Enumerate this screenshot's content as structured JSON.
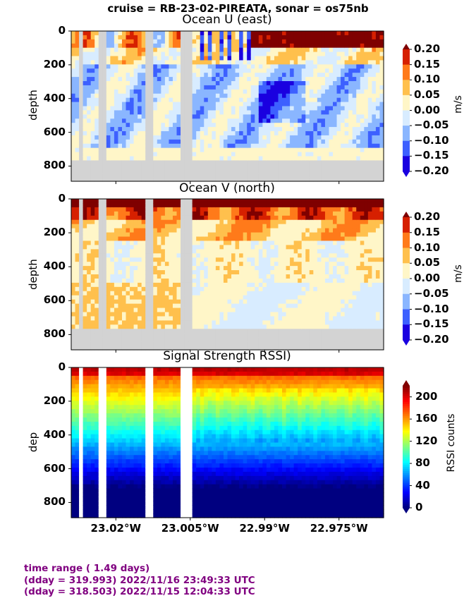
{
  "suptitle": "cruise = RB-23-02-PIREATA,  sonar = os75nb",
  "panels": [
    {
      "title": "Ocean U (east)",
      "ylabel": "depth"
    },
    {
      "title": "Ocean V (north)",
      "ylabel": "depth"
    },
    {
      "title": "Signal Strength RSSI)",
      "ylabel": "dep"
    }
  ],
  "colorbars": [
    {
      "label": "m/s",
      "ticks": [
        "0.20",
        "0.15",
        "0.10",
        "0.05",
        "0.00",
        "−0.05",
        "−0.10",
        "−0.15",
        "−0.20"
      ]
    },
    {
      "label": "m/s",
      "ticks": [
        "0.20",
        "0.15",
        "0.10",
        "0.05",
        "0.00",
        "−0.05",
        "−0.10",
        "−0.15",
        "−0.20"
      ]
    },
    {
      "label": "RSSI counts",
      "ticks": [
        "200",
        "160",
        "120",
        "80",
        "40",
        "0"
      ]
    }
  ],
  "footer": {
    "line1": "time range ( 1.49 days)",
    "line2": "(dday = 319.993) 2022/11/16 23:49:33 UTC",
    "line3": "(dday = 318.503) 2022/11/15 12:04:33 UTC"
  },
  "colors": {
    "velocity_levels": [
      "#1a00e0",
      "#3d60ff",
      "#8ab6ff",
      "#d8ecff",
      "#fff6c8",
      "#ffc04d",
      "#ff7a1a",
      "#d62000",
      "#7f0000"
    ],
    "mask": "#d3d3d3"
  },
  "chart_data": [
    {
      "type": "heatmap",
      "title": "Ocean U (east)",
      "ylabel": "depth",
      "xticks": [
        "23.02°W",
        "23.005°W",
        "22.99°W",
        "22.975°W"
      ],
      "x_tick_values": [
        -23.02,
        -23.005,
        -22.99,
        -22.975
      ],
      "yticks": [
        "0",
        "200",
        "400",
        "600",
        "800"
      ],
      "y_tick_values": [
        0,
        200,
        400,
        600,
        800
      ],
      "xlim": [
        -23.029,
        -22.966
      ],
      "ylim": [
        890,
        0
      ],
      "colorbar": {
        "label": "m/s",
        "levels": [
          -0.2,
          -0.15,
          -0.1,
          -0.05,
          0.0,
          0.05,
          0.1,
          0.15,
          0.2
        ]
      }
    },
    {
      "type": "heatmap",
      "title": "Ocean V (north)",
      "ylabel": "depth",
      "xticks": [
        "23.02°W",
        "23.005°W",
        "22.99°W",
        "22.975°W"
      ],
      "x_tick_values": [
        -23.02,
        -23.005,
        -22.99,
        -22.975
      ],
      "yticks": [
        "0",
        "200",
        "400",
        "600",
        "800"
      ],
      "y_tick_values": [
        0,
        200,
        400,
        600,
        800
      ],
      "xlim": [
        -23.029,
        -22.966
      ],
      "ylim": [
        890,
        0
      ],
      "colorbar": {
        "label": "m/s",
        "levels": [
          -0.2,
          -0.15,
          -0.1,
          -0.05,
          0.0,
          0.05,
          0.1,
          0.15,
          0.2
        ]
      }
    },
    {
      "type": "heatmap",
      "title": "Signal Strength RSSI)",
      "ylabel": "dep",
      "xticks": [
        "23.02°W",
        "23.005°W",
        "22.99°W",
        "22.975°W"
      ],
      "x_tick_values": [
        -23.02,
        -23.005,
        -22.99,
        -22.975
      ],
      "yticks": [
        "0",
        "200",
        "400",
        "600",
        "800"
      ],
      "y_tick_values": [
        0,
        200,
        400,
        600,
        800
      ],
      "xlim": [
        -23.029,
        -22.966
      ],
      "ylim": [
        890,
        0
      ],
      "colorbar": {
        "label": "RSSI counts",
        "range": [
          0,
          220
        ],
        "ticks": [
          0,
          40,
          80,
          120,
          160,
          200
        ]
      }
    }
  ]
}
